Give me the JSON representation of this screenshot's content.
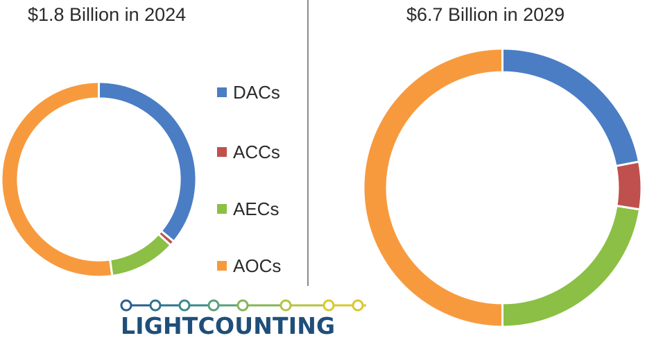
{
  "colors": {
    "DACs": "#4a7dc4",
    "ACCs": "#c0504d",
    "AECs": "#8bbf45",
    "AOCs": "#f79a3e",
    "text": "#2b2b2b",
    "logo_text": "#1f4e79"
  },
  "logo": {
    "text": "LIGHTCOUNTING",
    "dot_colors": [
      "#2c5d8f",
      "#2e7391",
      "#3a8a8a",
      "#5aa07a",
      "#86b458",
      "#b6c340",
      "#d7c92f"
    ]
  },
  "chart_data": [
    {
      "type": "pie",
      "title": "$1.8 Billion in 2024",
      "legend_position": "right",
      "categories": [
        "DACs",
        "ACCs",
        "AECs",
        "AOCs"
      ],
      "values": [
        36,
        0.8,
        11,
        52.2
      ],
      "total": 1.8,
      "unit": "Billion"
    },
    {
      "type": "pie",
      "title": "$6.7 Billion in 2029",
      "legend_position": "left",
      "categories": [
        "DACs",
        "ACCs",
        "AECs",
        "AOCs"
      ],
      "values": [
        22,
        5.5,
        22.5,
        50
      ],
      "total": 6.7,
      "unit": "Billion"
    }
  ]
}
